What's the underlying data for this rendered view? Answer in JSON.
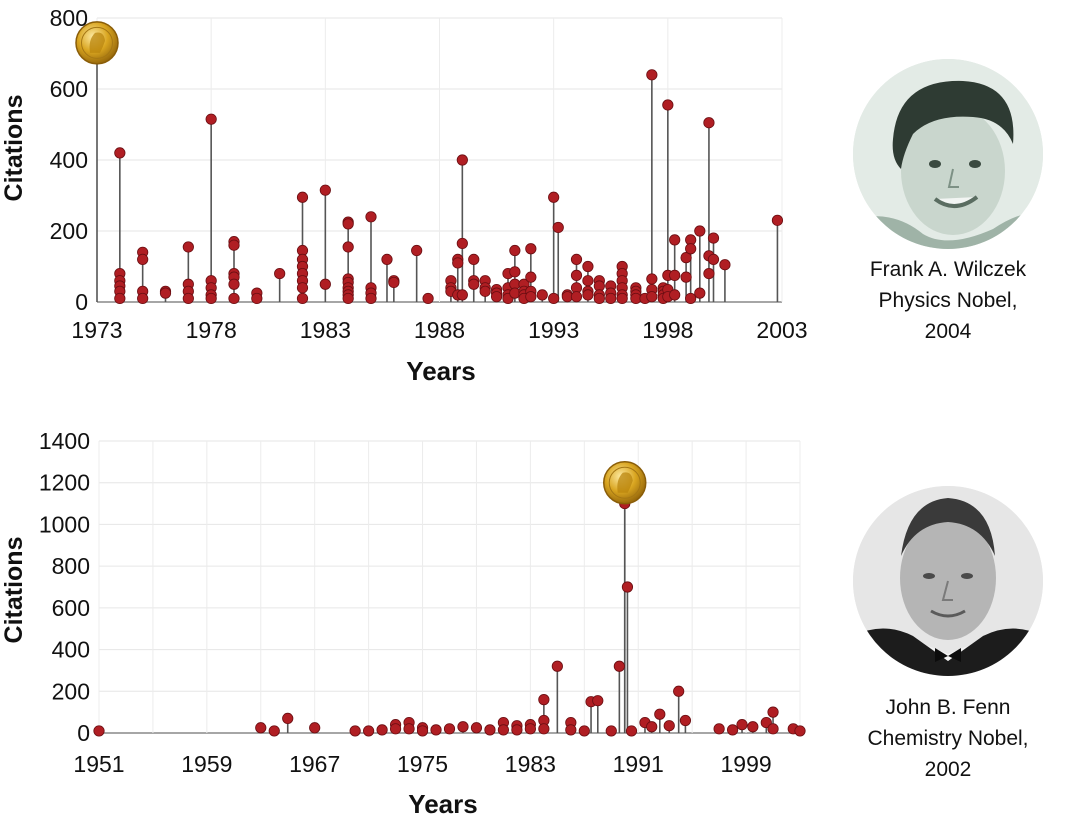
{
  "chart_data": [
    {
      "type": "scatter",
      "style": "lollipop",
      "xlabel": "Years",
      "ylabel": "Citations",
      "xlim": [
        1973,
        2003
      ],
      "ylim": [
        0,
        800
      ],
      "xticks": [
        1973,
        1978,
        1983,
        1988,
        1993,
        1998,
        2003
      ],
      "yticks": [
        0,
        200,
        400,
        600,
        800
      ],
      "grid": true,
      "marker_color": "#b01e23",
      "stem_color": "#555555",
      "nobel_medal": {
        "x": 1973.0,
        "y": 730
      },
      "stems": [
        {
          "x": 1974.0,
          "values": [
            420,
            80,
            60,
            45,
            30,
            10
          ]
        },
        {
          "x": 1975.0,
          "values": [
            140,
            120,
            30,
            10
          ]
        },
        {
          "x": 1976.0,
          "values": [
            30,
            25
          ]
        },
        {
          "x": 1977.0,
          "values": [
            155,
            50,
            30,
            10
          ]
        },
        {
          "x": 1978.0,
          "values": [
            515,
            60,
            40,
            20,
            10
          ]
        },
        {
          "x": 1979.0,
          "values": [
            170,
            160,
            80,
            70,
            50,
            10
          ]
        },
        {
          "x": 1980.0,
          "values": [
            25,
            10
          ]
        },
        {
          "x": 1981.0,
          "values": [
            80
          ]
        },
        {
          "x": 1982.0,
          "values": [
            295,
            145,
            120,
            100,
            80,
            60,
            40,
            10
          ]
        },
        {
          "x": 1983.0,
          "values": [
            315,
            50
          ]
        },
        {
          "x": 1984.0,
          "values": [
            225,
            220,
            155,
            65,
            55,
            40,
            30,
            20,
            10
          ]
        },
        {
          "x": 1985.0,
          "values": [
            240,
            40,
            25,
            10
          ]
        },
        {
          "x": 1985.7,
          "values": [
            120
          ]
        },
        {
          "x": 1986.0,
          "values": [
            60,
            55
          ]
        },
        {
          "x": 1987.0,
          "values": [
            145
          ]
        },
        {
          "x": 1987.5,
          "values": [
            10
          ]
        },
        {
          "x": 1988.5,
          "values": [
            60,
            40,
            30
          ]
        },
        {
          "x": 1988.8,
          "values": [
            120,
            110,
            20
          ]
        },
        {
          "x": 1989.0,
          "values": [
            400,
            165,
            20
          ]
        },
        {
          "x": 1989.5,
          "values": [
            120,
            60,
            50
          ]
        },
        {
          "x": 1990.0,
          "values": [
            60,
            40,
            30
          ]
        },
        {
          "x": 1990.5,
          "values": [
            35,
            25,
            15
          ]
        },
        {
          "x": 1991.0,
          "values": [
            80,
            40,
            20,
            10
          ]
        },
        {
          "x": 1991.3,
          "values": [
            145,
            85,
            50,
            25
          ]
        },
        {
          "x": 1991.7,
          "values": [
            50,
            30,
            20,
            10
          ]
        },
        {
          "x": 1992.0,
          "values": [
            150,
            70,
            30,
            15
          ]
        },
        {
          "x": 1992.5,
          "values": [
            20
          ]
        },
        {
          "x": 1993.0,
          "values": [
            295,
            10
          ]
        },
        {
          "x": 1993.2,
          "values": [
            210
          ]
        },
        {
          "x": 1993.6,
          "values": [
            20,
            15
          ]
        },
        {
          "x": 1994.0,
          "values": [
            120,
            75,
            40,
            15
          ]
        },
        {
          "x": 1994.5,
          "values": [
            100,
            60,
            30,
            20
          ]
        },
        {
          "x": 1995.0,
          "values": [
            60,
            45,
            20,
            10
          ]
        },
        {
          "x": 1995.5,
          "values": [
            45,
            25,
            10
          ]
        },
        {
          "x": 1996.0,
          "values": [
            100,
            80,
            60,
            40,
            20,
            10
          ]
        },
        {
          "x": 1996.6,
          "values": [
            40,
            30,
            20,
            10
          ]
        },
        {
          "x": 1997.0,
          "values": [
            10
          ]
        },
        {
          "x": 1997.3,
          "values": [
            640,
            65,
            35,
            15
          ]
        },
        {
          "x": 1997.8,
          "values": [
            40,
            30,
            20,
            10
          ]
        },
        {
          "x": 1998.0,
          "values": [
            555,
            75,
            35,
            15
          ]
        },
        {
          "x": 1998.3,
          "values": [
            175,
            75,
            20
          ]
        },
        {
          "x": 1998.8,
          "values": [
            125,
            70
          ]
        },
        {
          "x": 1999.0,
          "values": [
            175,
            150,
            10
          ]
        },
        {
          "x": 1999.4,
          "values": [
            200,
            25
          ]
        },
        {
          "x": 1999.8,
          "values": [
            505,
            130,
            80
          ]
        },
        {
          "x": 2000.0,
          "values": [
            180,
            120
          ]
        },
        {
          "x": 2000.5,
          "values": [
            105
          ]
        },
        {
          "x": 2002.8,
          "values": [
            230
          ]
        }
      ]
    },
    {
      "type": "scatter",
      "style": "lollipop",
      "xlabel": "Years",
      "ylabel": "Citations",
      "xlim": [
        1951,
        2003
      ],
      "ylim": [
        0,
        1400
      ],
      "xticks": [
        1951,
        1959,
        1967,
        1975,
        1983,
        1991,
        1999
      ],
      "yticks": [
        0,
        200,
        400,
        600,
        800,
        1000,
        1200,
        1400
      ],
      "grid": true,
      "marker_color": "#b01e23",
      "stem_color": "#555555",
      "nobel_medal": {
        "x": 1990.0,
        "y": 1200
      },
      "stems": [
        {
          "x": 1951.0,
          "values": [
            10
          ]
        },
        {
          "x": 1963.0,
          "values": [
            25
          ]
        },
        {
          "x": 1964.0,
          "values": [
            10
          ]
        },
        {
          "x": 1965.0,
          "values": [
            70
          ]
        },
        {
          "x": 1967.0,
          "values": [
            25
          ]
        },
        {
          "x": 1970.0,
          "values": [
            10
          ]
        },
        {
          "x": 1971.0,
          "values": [
            10
          ]
        },
        {
          "x": 1972.0,
          "values": [
            15
          ]
        },
        {
          "x": 1973.0,
          "values": [
            40,
            20
          ]
        },
        {
          "x": 1974.0,
          "values": [
            50,
            20
          ]
        },
        {
          "x": 1975.0,
          "values": [
            25,
            10
          ]
        },
        {
          "x": 1976.0,
          "values": [
            15
          ]
        },
        {
          "x": 1977.0,
          "values": [
            20
          ]
        },
        {
          "x": 1978.0,
          "values": [
            30
          ]
        },
        {
          "x": 1979.0,
          "values": [
            25
          ]
        },
        {
          "x": 1980.0,
          "values": [
            15
          ]
        },
        {
          "x": 1981.0,
          "values": [
            50,
            15
          ]
        },
        {
          "x": 1982.0,
          "values": [
            35,
            15
          ]
        },
        {
          "x": 1983.0,
          "values": [
            40,
            20
          ]
        },
        {
          "x": 1984.0,
          "values": [
            160,
            60,
            20
          ]
        },
        {
          "x": 1985.0,
          "values": [
            320
          ]
        },
        {
          "x": 1986.0,
          "values": [
            50,
            15
          ]
        },
        {
          "x": 1987.0,
          "values": [
            10
          ]
        },
        {
          "x": 1987.5,
          "values": [
            150
          ]
        },
        {
          "x": 1988.0,
          "values": [
            155
          ]
        },
        {
          "x": 1989.0,
          "values": [
            10
          ]
        },
        {
          "x": 1989.6,
          "values": [
            320
          ]
        },
        {
          "x": 1990.0,
          "values": [
            1100
          ]
        },
        {
          "x": 1990.2,
          "values": [
            700
          ]
        },
        {
          "x": 1990.5,
          "values": [
            10
          ]
        },
        {
          "x": 1991.5,
          "values": [
            50
          ]
        },
        {
          "x": 1992.0,
          "values": [
            30
          ]
        },
        {
          "x": 1992.6,
          "values": [
            90
          ]
        },
        {
          "x": 1993.3,
          "values": [
            35
          ]
        },
        {
          "x": 1994.0,
          "values": [
            200
          ]
        },
        {
          "x": 1994.5,
          "values": [
            60
          ]
        },
        {
          "x": 1997.0,
          "values": [
            20
          ]
        },
        {
          "x": 1998.0,
          "values": [
            15
          ]
        },
        {
          "x": 1998.7,
          "values": [
            40
          ]
        },
        {
          "x": 1999.5,
          "values": [
            30
          ]
        },
        {
          "x": 2000.5,
          "values": [
            50
          ]
        },
        {
          "x": 2001.0,
          "values": [
            100,
            20
          ]
        },
        {
          "x": 2002.5,
          "values": [
            20
          ]
        },
        {
          "x": 2003.0,
          "values": [
            10
          ]
        }
      ]
    }
  ],
  "laureates": [
    {
      "name": "Frank A. Wilczek",
      "prize": "Physics Nobel,",
      "year": "2004",
      "photo_icon": "portrait-photo-color"
    },
    {
      "name": "John B. Fenn",
      "prize": "Chemistry Nobel,",
      "year": "2002",
      "photo_icon": "portrait-photo-grayscale"
    }
  ]
}
